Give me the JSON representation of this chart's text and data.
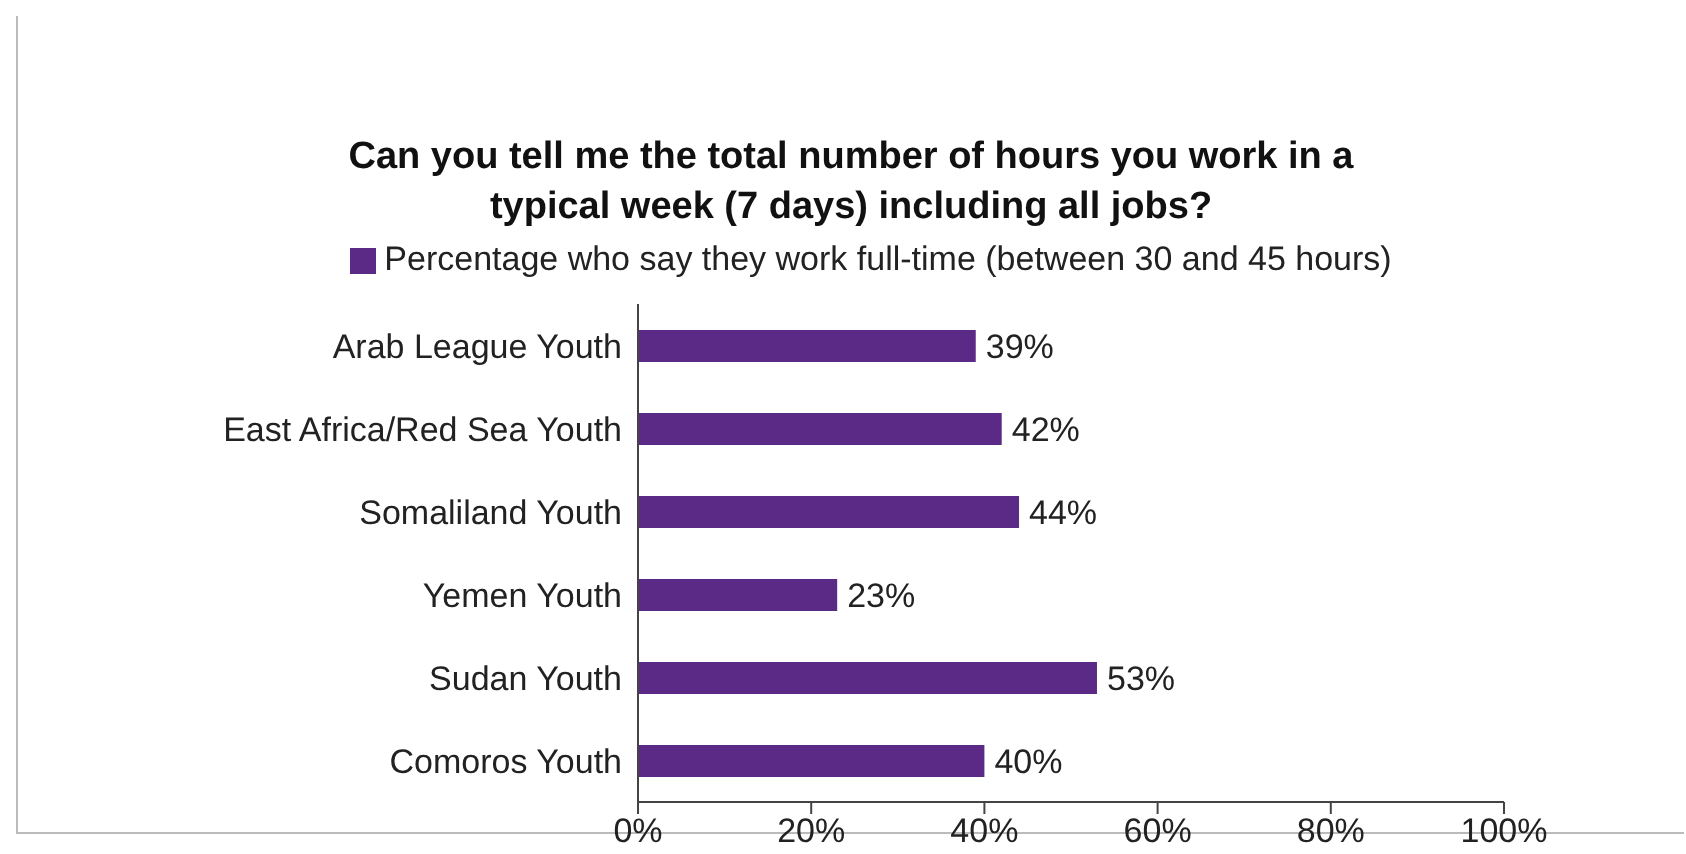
{
  "chart_data": {
    "type": "bar",
    "orientation": "horizontal",
    "title": "Can you tell me the total number of hours you work in a typical week (7 days) including all jobs?",
    "categories": [
      "Arab League Youth",
      "East Africa/Red Sea Youth",
      "Somaliland Youth",
      "Yemen Youth",
      "Sudan Youth",
      "Comoros Youth"
    ],
    "series": [
      {
        "name": "Percentage who say they work full-time (between 30 and 45 hours)",
        "color": "#5b2a86",
        "values": [
          39,
          42,
          44,
          23,
          53,
          40
        ],
        "value_labels": [
          "39%",
          "42%",
          "44%",
          "23%",
          "53%",
          "40%"
        ]
      }
    ],
    "xlim": [
      0,
      100
    ],
    "xticks": [
      {
        "value": 0,
        "label": "0%"
      },
      {
        "value": 20,
        "label": "20%"
      },
      {
        "value": 40,
        "label": "40%"
      },
      {
        "value": 60,
        "label": "60%"
      },
      {
        "value": 80,
        "label": "80%"
      },
      {
        "value": 100,
        "label": "100%"
      }
    ],
    "grid": false,
    "legend": "top"
  }
}
